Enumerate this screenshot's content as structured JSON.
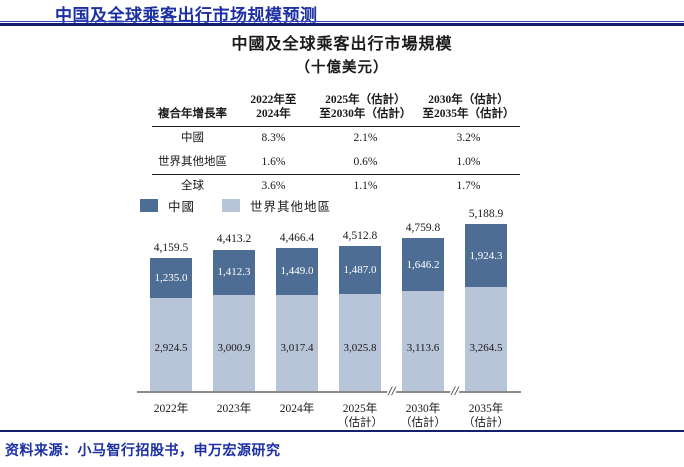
{
  "colors": {
    "accent_blue": "#1C30A3",
    "accent_blue_light": "#2E44C8",
    "rule_navy": "#141F6E",
    "bar_china": "#4E6D94",
    "bar_world": "#B8C4D8",
    "axis_gray": "#8A8A8A"
  },
  "header": {
    "title": "中国及全球乘客出行市场规模预测"
  },
  "footer": {
    "source": "资料来源：小马智行招股书，申万宏源研究"
  },
  "chart": {
    "title": "中國及全球乘客出行市場規模",
    "subtitle": "（十億美元）"
  },
  "cagr_table": {
    "col_headers": [
      [
        "複合年增長率"
      ],
      [
        "2022年至",
        "2024年"
      ],
      [
        "2025年（估計）",
        "至2030年（估計）"
      ],
      [
        "2030年（估計）",
        "至2035年（估計）"
      ]
    ],
    "rows": [
      {
        "label": "中國",
        "values": [
          "8.3%",
          "2.1%",
          "3.2%"
        ]
      },
      {
        "label": "世界其他地區",
        "values": [
          "1.6%",
          "0.6%",
          "1.0%"
        ]
      },
      {
        "label": "全球",
        "values": [
          "3.6%",
          "1.1%",
          "1.7%"
        ],
        "is_total": true
      }
    ]
  },
  "chart_data": {
    "type": "bar",
    "stacked": true,
    "unit": "十億美元",
    "grid": false,
    "legend_position": "top-left",
    "categories": [
      [
        "2022年"
      ],
      [
        "2023年"
      ],
      [
        "2024年"
      ],
      [
        "2025年",
        "（估計）"
      ],
      [
        "2030年",
        "（估計）"
      ],
      [
        "2035年",
        "（估計）"
      ]
    ],
    "series": [
      {
        "name": "中國",
        "color": "#4E6D94",
        "values": [
          1235.0,
          1412.3,
          1449.0,
          1487.0,
          1646.2,
          1924.3
        ]
      },
      {
        "name": "世界其他地區",
        "color": "#B8C4D8",
        "values": [
          2924.5,
          3000.9,
          3017.4,
          3025.8,
          3113.6,
          3264.5
        ]
      }
    ],
    "totals": [
      4159.5,
      4413.2,
      4466.4,
      4512.8,
      4759.8,
      5188.9
    ],
    "axis_breaks_between": [
      [
        3,
        4
      ],
      [
        4,
        5
      ]
    ]
  }
}
